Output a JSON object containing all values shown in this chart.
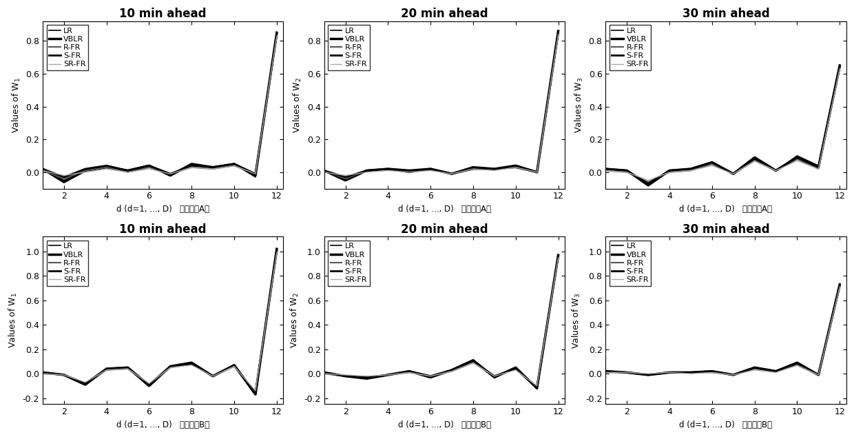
{
  "titles": [
    "10 min ahead",
    "20 min ahead",
    "30 min ahead"
  ],
  "ylabels_A": [
    "Values of W₁",
    "Values of W₂",
    "Values of W₃"
  ],
  "ylabels_B": [
    "Values of W₁",
    "Values of W₂",
    "Values of W₃"
  ],
  "xlabel_A": "d (d=1, ..., D)   （数据集A）",
  "xlabel_B": "d (d=1, ..., D)   （数据集B）",
  "legend_labels": [
    "LR",
    "VBLR",
    "R-FR",
    "S-FR",
    "SR-FR"
  ],
  "x": [
    1,
    2,
    3,
    4,
    5,
    6,
    7,
    8,
    9,
    10,
    11,
    12
  ],
  "data_A": [
    {
      "LR": [
        0.02,
        -0.05,
        0.01,
        0.03,
        0.01,
        0.04,
        -0.02,
        0.04,
        0.03,
        0.05,
        -0.03,
        0.85
      ],
      "VBLR": [
        0.02,
        -0.06,
        0.01,
        0.03,
        0.01,
        0.04,
        -0.02,
        0.05,
        0.03,
        0.05,
        -0.02,
        0.85
      ],
      "R-FR": [
        0.01,
        -0.04,
        0.01,
        0.03,
        0.0,
        0.03,
        -0.01,
        0.03,
        0.02,
        0.04,
        -0.01,
        0.83
      ],
      "S-FR": [
        0.02,
        -0.03,
        0.02,
        0.04,
        0.01,
        0.04,
        -0.01,
        0.04,
        0.03,
        0.05,
        -0.01,
        0.84
      ],
      "SR-FR": [
        0.01,
        -0.02,
        0.0,
        0.02,
        0.0,
        0.02,
        -0.01,
        0.03,
        0.02,
        0.04,
        -0.01,
        0.83
      ]
    },
    {
      "LR": [
        0.01,
        -0.05,
        0.01,
        0.02,
        0.01,
        0.02,
        -0.01,
        0.03,
        0.02,
        0.04,
        0.0,
        0.86
      ],
      "VBLR": [
        0.01,
        -0.05,
        0.01,
        0.02,
        0.01,
        0.02,
        -0.01,
        0.03,
        0.02,
        0.04,
        0.0,
        0.86
      ],
      "R-FR": [
        0.01,
        -0.04,
        0.01,
        0.02,
        0.0,
        0.02,
        -0.01,
        0.02,
        0.02,
        0.03,
        0.0,
        0.84
      ],
      "S-FR": [
        0.01,
        -0.03,
        0.01,
        0.02,
        0.0,
        0.02,
        -0.01,
        0.02,
        0.02,
        0.03,
        0.0,
        0.85
      ],
      "SR-FR": [
        0.0,
        -0.02,
        0.0,
        0.01,
        0.0,
        0.01,
        -0.01,
        0.02,
        0.01,
        0.03,
        0.0,
        0.84
      ]
    },
    {
      "LR": [
        0.02,
        0.01,
        -0.08,
        0.01,
        0.02,
        0.06,
        -0.01,
        0.09,
        0.01,
        0.1,
        0.04,
        0.65
      ],
      "VBLR": [
        0.02,
        0.01,
        -0.08,
        0.01,
        0.02,
        0.06,
        -0.01,
        0.09,
        0.01,
        0.09,
        0.03,
        0.65
      ],
      "R-FR": [
        0.01,
        0.0,
        -0.06,
        0.0,
        0.01,
        0.05,
        -0.01,
        0.07,
        0.01,
        0.08,
        0.02,
        0.63
      ],
      "S-FR": [
        0.02,
        0.01,
        -0.07,
        0.01,
        0.02,
        0.06,
        -0.01,
        0.08,
        0.01,
        0.09,
        0.03,
        0.64
      ],
      "SR-FR": [
        0.01,
        0.0,
        -0.05,
        0.0,
        0.01,
        0.04,
        -0.01,
        0.07,
        0.01,
        0.07,
        0.02,
        0.63
      ]
    }
  ],
  "data_B": [
    {
      "LR": [
        0.01,
        -0.01,
        -0.09,
        0.04,
        0.05,
        -0.1,
        0.06,
        0.09,
        -0.02,
        0.07,
        -0.17,
        1.02
      ],
      "VBLR": [
        0.01,
        -0.01,
        -0.09,
        0.04,
        0.05,
        -0.1,
        0.06,
        0.09,
        -0.02,
        0.07,
        -0.17,
        1.02
      ],
      "R-FR": [
        0.0,
        -0.01,
        -0.08,
        0.03,
        0.04,
        -0.09,
        0.05,
        0.08,
        -0.02,
        0.06,
        -0.15,
        1.0
      ],
      "S-FR": [
        0.01,
        -0.01,
        -0.08,
        0.04,
        0.05,
        -0.09,
        0.06,
        0.08,
        -0.02,
        0.07,
        -0.16,
        1.01
      ],
      "SR-FR": [
        0.0,
        -0.01,
        -0.07,
        0.03,
        0.04,
        -0.08,
        0.05,
        0.07,
        -0.02,
        0.06,
        -0.14,
        0.99
      ]
    },
    {
      "LR": [
        0.01,
        -0.02,
        -0.04,
        -0.01,
        0.02,
        -0.03,
        0.03,
        0.11,
        -0.03,
        0.05,
        -0.12,
        0.97
      ],
      "VBLR": [
        0.01,
        -0.02,
        -0.04,
        -0.01,
        0.02,
        -0.03,
        0.03,
        0.11,
        -0.03,
        0.05,
        -0.12,
        0.97
      ],
      "R-FR": [
        0.0,
        -0.02,
        -0.03,
        -0.01,
        0.01,
        -0.02,
        0.02,
        0.09,
        -0.02,
        0.04,
        -0.11,
        0.95
      ],
      "S-FR": [
        0.01,
        -0.02,
        -0.03,
        -0.01,
        0.02,
        -0.02,
        0.03,
        0.1,
        -0.02,
        0.04,
        -0.11,
        0.96
      ],
      "SR-FR": [
        0.0,
        -0.01,
        -0.02,
        -0.01,
        0.01,
        -0.02,
        0.02,
        0.09,
        -0.02,
        0.03,
        -0.1,
        0.95
      ]
    },
    {
      "LR": [
        0.02,
        0.01,
        -0.01,
        0.01,
        0.01,
        0.02,
        -0.01,
        0.05,
        0.02,
        0.09,
        -0.01,
        0.73
      ],
      "VBLR": [
        0.02,
        0.01,
        -0.01,
        0.01,
        0.01,
        0.02,
        -0.01,
        0.05,
        0.02,
        0.09,
        -0.01,
        0.73
      ],
      "R-FR": [
        0.01,
        0.01,
        -0.01,
        0.01,
        0.01,
        0.01,
        -0.01,
        0.04,
        0.02,
        0.07,
        -0.01,
        0.71
      ],
      "S-FR": [
        0.02,
        0.01,
        -0.01,
        0.01,
        0.01,
        0.02,
        -0.01,
        0.05,
        0.02,
        0.08,
        -0.01,
        0.72
      ],
      "SR-FR": [
        0.01,
        0.01,
        0.0,
        0.01,
        0.0,
        0.01,
        -0.01,
        0.03,
        0.01,
        0.07,
        -0.01,
        0.71
      ]
    }
  ],
  "ylim_A": [
    -0.1,
    0.92
  ],
  "ylim_B": [
    -0.25,
    1.12
  ],
  "yticks_A": [
    0.0,
    0.2,
    0.4,
    0.6,
    0.8
  ],
  "yticks_B": [
    -0.2,
    0.0,
    0.2,
    0.4,
    0.6,
    0.8,
    1.0
  ],
  "xticks": [
    2,
    4,
    6,
    8,
    10,
    12
  ],
  "xlim": [
    1,
    12.3
  ]
}
